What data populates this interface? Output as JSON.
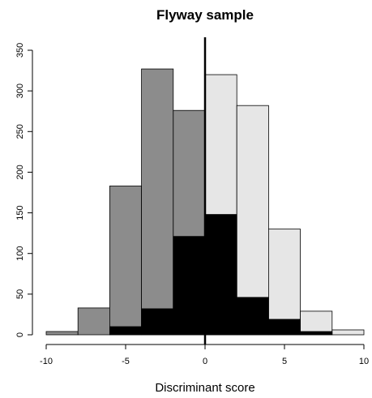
{
  "chart_data": {
    "type": "bar",
    "title": "Flyway sample",
    "xlabel": "Discriminant score",
    "ylabel": "",
    "bin_edges": [
      -10,
      -8,
      -6,
      -4,
      -2,
      0,
      2,
      4,
      6,
      8,
      10
    ],
    "xlim": [
      -10,
      10
    ],
    "ylim": [
      0,
      350
    ],
    "xticks": [
      -10,
      -5,
      0,
      5,
      10
    ],
    "yticks": [
      0,
      50,
      100,
      150,
      200,
      250,
      300,
      350
    ],
    "series": [
      {
        "color": "#8c8c8c",
        "values": [
          4,
          33,
          183,
          327,
          276,
          null,
          null,
          null,
          null,
          null
        ]
      },
      {
        "color": "#e6e6e6",
        "values": [
          null,
          null,
          null,
          null,
          null,
          320,
          282,
          130,
          29,
          6
        ]
      },
      {
        "color": "#000000",
        "values": [
          0,
          0,
          10,
          32,
          121,
          148,
          46,
          19,
          4,
          0
        ]
      }
    ],
    "vline_x": 0,
    "grid": false
  }
}
